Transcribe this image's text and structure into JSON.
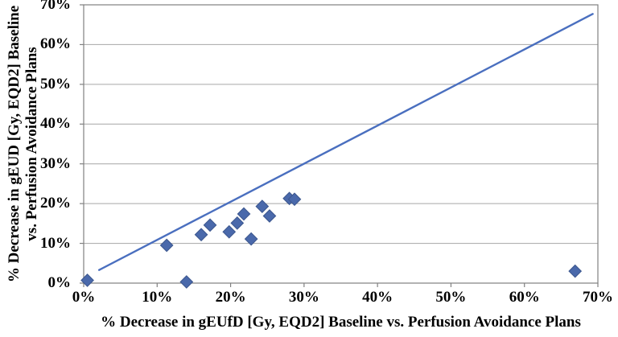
{
  "chart_data": {
    "type": "scatter",
    "title": "",
    "xlabel": "% Decrease in gEUfD [Gy, EQD2] Baseline vs. Perfusion Avoidance Plans",
    "ylabel": "% Decrease in gEUD [Gy, EQD2] Baseline vs. Perfusion Avoidance Plans",
    "ylabel_lines": [
      "% Decrease in gEUD [Gy, EQD2] Baseline",
      "vs. Perfusion Avoidance Plans"
    ],
    "xlim": [
      0,
      70
    ],
    "ylim": [
      0,
      70
    ],
    "x_tick_labels": [
      "0%",
      "10%",
      "20%",
      "30%",
      "40%",
      "50%",
      "60%",
      "70%"
    ],
    "y_tick_labels": [
      "0%",
      "10%",
      "20%",
      "30%",
      "40%",
      "50%",
      "60%",
      "70%"
    ],
    "grid": "horizontal-only",
    "legend": "none",
    "series": [
      {
        "name": "scatter-points",
        "type": "scatter",
        "marker": "diamond",
        "color": "#4a69ab",
        "points": [
          [
            0.5,
            0.7
          ],
          [
            11.3,
            9.5
          ],
          [
            14.0,
            0.3
          ],
          [
            16.0,
            12.2
          ],
          [
            17.2,
            14.6
          ],
          [
            19.8,
            12.9
          ],
          [
            20.9,
            15.1
          ],
          [
            21.8,
            17.4
          ],
          [
            22.8,
            11.1
          ],
          [
            24.3,
            19.3
          ],
          [
            25.3,
            16.9
          ],
          [
            28.0,
            21.3
          ],
          [
            28.7,
            21.1
          ],
          [
            66.9,
            3.0
          ]
        ]
      },
      {
        "name": "identity-trend-line",
        "type": "line",
        "color": "#4a6fbf",
        "points": [
          [
            2.1,
            3.3
          ],
          [
            69.3,
            67.7
          ]
        ]
      }
    ],
    "colors": {
      "marker_fill": "#4a69ab",
      "marker_stroke": "#3d5890",
      "line": "#4a6fbf",
      "gridline": "#a6a6a6",
      "frame": "#808080",
      "text": "#000000",
      "background": "#ffffff"
    }
  }
}
